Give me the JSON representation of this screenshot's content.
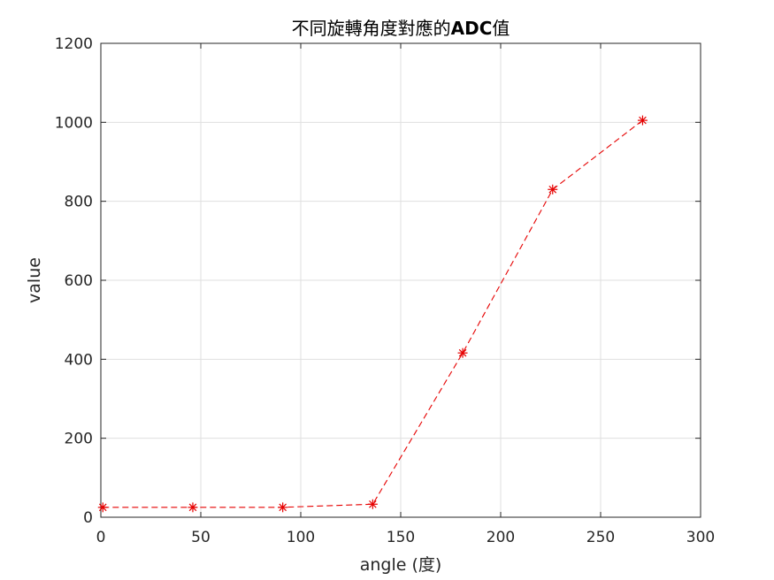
{
  "chart_data": {
    "type": "line",
    "title_parts": {
      "prefix": "不同旋轉角度對應的",
      "bold": "ADC",
      "suffix": "值"
    },
    "xlabel": "angle (度)",
    "ylabel": "value",
    "xlim": [
      0,
      300
    ],
    "ylim": [
      0,
      1200
    ],
    "xticks": [
      0,
      50,
      100,
      150,
      200,
      250,
      300
    ],
    "yticks": [
      0,
      200,
      400,
      600,
      800,
      1000,
      1200
    ],
    "grid": true,
    "series": [
      {
        "line_style": "dashed",
        "marker": "asterisk",
        "color": "#e60000",
        "x": [
          1,
          46,
          91,
          136,
          181,
          226,
          271
        ],
        "y": [
          25,
          25,
          25,
          33,
          416,
          830,
          1005
        ]
      }
    ]
  }
}
